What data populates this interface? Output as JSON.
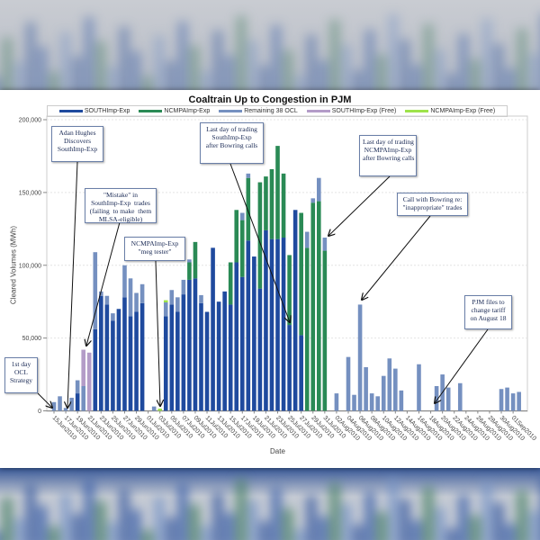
{
  "chart_data": {
    "type": "bar",
    "stacked": true,
    "title": "Coaltrain Up to Congestion in PJM",
    "xlabel": "Date",
    "ylabel": "Cleared Volumes (MWh)",
    "ylim": [
      0,
      200000
    ],
    "yticks": [
      0,
      50000,
      100000,
      150000,
      200000
    ],
    "ytick_labels": [
      "0",
      "50,000",
      "100,000",
      "150,000",
      "200,000"
    ],
    "grid": true,
    "legend_placement": "top",
    "xtick_labels": [
      "15Jun2010",
      "17Jun2010",
      "19Jun2010",
      "21Jun2010",
      "23Jun2010",
      "25Jun2010",
      "27Jun2010",
      "29Jun2010",
      "01Jul2010",
      "03Jul2010",
      "05Jul2010",
      "07Jul2010",
      "09Jul2010",
      "11Jul2010",
      "13Jul2010",
      "15Jul2010",
      "17Jul2010",
      "19Jul2010",
      "21Jul2010",
      "23Jul2010",
      "25Jul2010",
      "27Jul2010",
      "29Jul2010",
      "31Jul2010",
      "02Aug2010",
      "04Aug2010",
      "06Aug2010",
      "08Aug2010",
      "10Aug2010",
      "12Aug2010",
      "14Aug2010",
      "16Aug2010",
      "18Aug2010",
      "20Aug2010",
      "22Aug2010",
      "24Aug2010",
      "26Aug2010",
      "28Aug2010",
      "30Aug2010",
      "01Sep2010"
    ],
    "x_days_start": "15Jun2010",
    "num_days": 80,
    "series": [
      {
        "name": "SOUTHImp-Exp",
        "color": "#1f4a9e",
        "values": [
          0,
          0,
          0,
          0,
          12000,
          0,
          0,
          56000,
          79000,
          73000,
          62000,
          70000,
          78000,
          65000,
          68000,
          74000,
          0,
          0,
          0,
          65000,
          73000,
          68000,
          80000,
          90000,
          91000,
          74000,
          68000,
          112000,
          75000,
          82000,
          73000,
          102000,
          92000,
          117000,
          106000,
          84000,
          124000,
          118000,
          118000,
          119000,
          59000,
          138000,
          52000,
          0,
          0,
          0,
          0,
          0,
          0,
          0,
          0,
          0,
          0,
          0,
          0,
          0,
          0,
          0,
          0,
          0,
          0,
          0,
          0,
          0,
          0,
          0,
          0,
          0,
          0,
          0,
          0,
          0,
          0,
          0,
          0,
          0,
          0,
          0,
          0,
          0
        ]
      },
      {
        "name": "NCMPAImp-Exp",
        "color": "#2a8a55",
        "values": [
          0,
          0,
          0,
          0,
          0,
          0,
          0,
          0,
          0,
          0,
          0,
          0,
          0,
          0,
          0,
          0,
          0,
          0,
          0,
          0,
          0,
          0,
          0,
          12000,
          25000,
          0,
          0,
          0,
          0,
          0,
          29000,
          36000,
          39000,
          43000,
          0,
          73000,
          37000,
          48000,
          64000,
          44000,
          48000,
          0,
          84000,
          112000,
          143000,
          144000,
          110000,
          0,
          0,
          0,
          0,
          0,
          0,
          0,
          0,
          0,
          0,
          0,
          0,
          0,
          0,
          0,
          0,
          0,
          0,
          0,
          0,
          0,
          0,
          0,
          0,
          0,
          0,
          0,
          0,
          0,
          0,
          0,
          0,
          0
        ]
      },
      {
        "name": "Remaining 38 OCL",
        "color": "#7590c0",
        "values": [
          6000,
          10000,
          2000,
          9000,
          9000,
          17000,
          0,
          53000,
          3000,
          6000,
          5000,
          0,
          22000,
          26000,
          13000,
          13000,
          0,
          3000,
          0,
          9500,
          10000,
          10000,
          10000,
          2000,
          0,
          5500,
          0,
          0,
          0,
          0,
          0,
          0,
          5000,
          3000,
          0,
          0,
          0,
          0,
          0,
          0,
          0,
          0,
          0,
          11000,
          3000,
          16000,
          9000,
          0,
          12000,
          0,
          37000,
          11000,
          73000,
          30000,
          12000,
          10000,
          24000,
          36000,
          29000,
          14000,
          0,
          0,
          32000,
          0,
          0,
          17000,
          25000,
          16000,
          0,
          19000,
          0,
          0,
          0,
          0,
          0,
          0,
          15000,
          16000,
          12000,
          13000
        ]
      },
      {
        "name": "SOUTHImp-Exp (Free)",
        "color": "#b49cc8",
        "values": [
          0,
          0,
          0,
          0,
          0,
          25000,
          40000,
          0,
          0,
          0,
          0,
          0,
          0,
          0,
          0,
          0,
          0,
          0,
          0,
          0,
          0,
          0,
          0,
          0,
          0,
          0,
          0,
          0,
          0,
          0,
          0,
          0,
          0,
          0,
          0,
          0,
          0,
          0,
          0,
          0,
          0,
          0,
          0,
          0,
          0,
          0,
          0,
          0,
          0,
          0,
          0,
          0,
          0,
          0,
          0,
          0,
          0,
          0,
          0,
          0,
          0,
          0,
          0,
          0,
          0,
          0,
          0,
          0,
          0,
          0,
          0,
          0,
          0,
          0,
          0,
          0,
          0,
          0,
          0,
          0
        ]
      },
      {
        "name": "NCMPAImp-Exp (Free)",
        "color": "#9ee34a",
        "values": [
          0,
          0,
          0,
          0,
          0,
          0,
          0,
          0,
          0,
          0,
          0,
          0,
          0,
          0,
          0,
          0,
          0,
          0,
          1500,
          1500,
          0,
          0,
          0,
          0,
          0,
          0,
          0,
          0,
          0,
          0,
          0,
          0,
          0,
          0,
          0,
          0,
          0,
          0,
          0,
          0,
          0,
          0,
          0,
          0,
          0,
          0,
          0,
          0,
          0,
          0,
          0,
          0,
          0,
          0,
          0,
          0,
          0,
          0,
          0,
          0,
          0,
          0,
          0,
          0,
          0,
          0,
          0,
          0,
          0,
          0,
          0,
          0,
          0,
          0,
          0,
          0,
          0,
          0,
          0,
          0
        ]
      }
    ],
    "annotations": [
      {
        "text": "Adan Hughes\nDiscovers\nSouthImp-Exp"
      },
      {
        "text": "\"Mistake\" in\nSouthImp-Exp  trades\n(failing  to make  them\nMLSA-eligible)"
      },
      {
        "text": "1st day\nOCL\nStrategy"
      },
      {
        "text": "NCMPAImp-Exp\n\"meg tester\""
      },
      {
        "text": "Last day of trading\nSouthImp-Exp\nafter Bowring calls"
      },
      {
        "text": "Last day of trading\nNCMPAImp-Exp\nafter Bowring calls"
      },
      {
        "text": "Call with Bowring re:\n\"inappropriate\" trades"
      },
      {
        "text": "PJM files to\nchange tariff\non August 18"
      }
    ]
  }
}
